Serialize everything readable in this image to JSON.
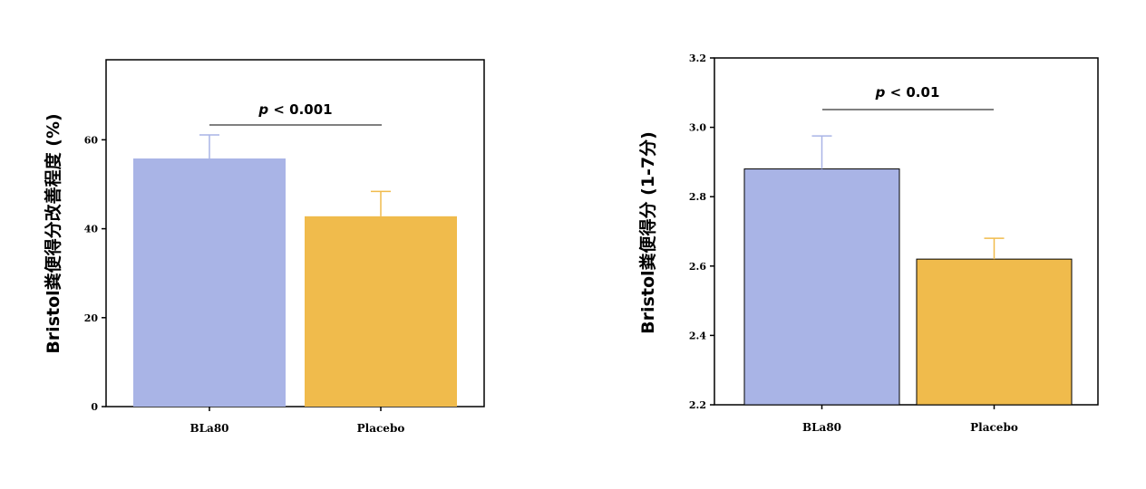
{
  "chart_data": [
    {
      "type": "bar",
      "categories": [
        "BLa80",
        "Placebo"
      ],
      "values": [
        55.8,
        42.8
      ],
      "errors": [
        5.3,
        5.6
      ],
      "colors": [
        "#a9b4e6",
        "#f0bb4c"
      ],
      "ylabel": "Bristol粪便得分改善程度 (%)",
      "ylim": [
        0,
        78
      ],
      "yticks": [
        "0",
        "20",
        "40",
        "60"
      ],
      "annotation": {
        "italic": "p",
        "rest": " < 0.001"
      },
      "grid": false,
      "legend": "none",
      "bar_border": false
    },
    {
      "type": "bar",
      "categories": [
        "BLa80",
        "Placebo"
      ],
      "values": [
        2.88,
        2.62
      ],
      "errors": [
        0.095,
        0.06
      ],
      "colors": [
        "#a9b4e6",
        "#f0bb4c"
      ],
      "ylabel": "Bristol粪便得分 (1-7分)",
      "ylim": [
        2.2,
        3.2
      ],
      "yticks": [
        "2.2",
        "2.4",
        "2.6",
        "2.8",
        "3.0",
        "3.2"
      ],
      "annotation": {
        "italic": "p",
        "rest": " < 0.01"
      },
      "grid": false,
      "legend": "none",
      "bar_border": true
    }
  ]
}
